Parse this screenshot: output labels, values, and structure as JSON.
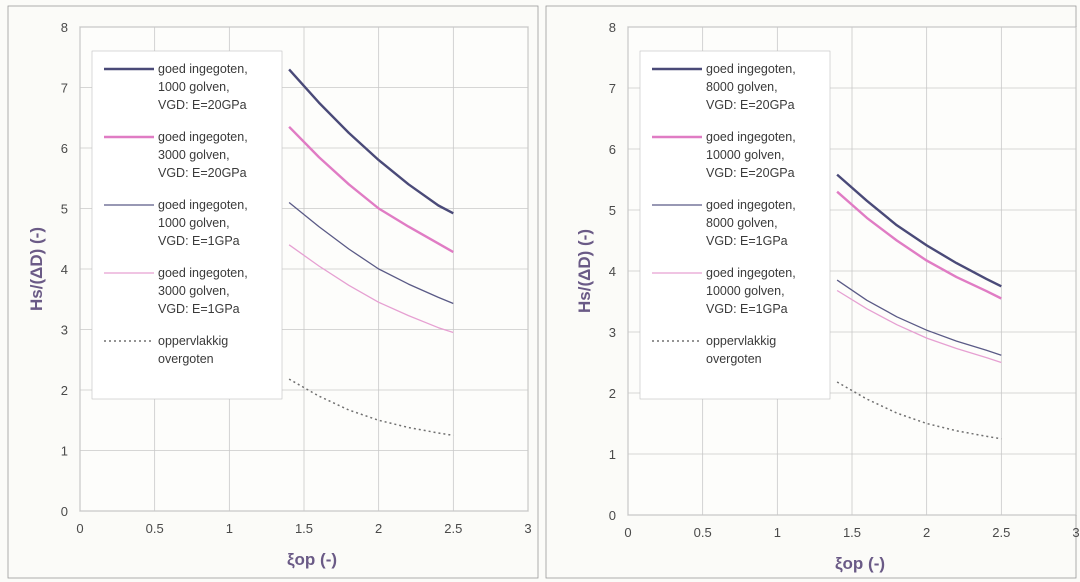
{
  "chart_data": [
    {
      "type": "line",
      "xlabel": "ξop (-)",
      "ylabel": "Hs/(ΔD) (-)",
      "xlim": [
        0,
        3
      ],
      "ylim": [
        0,
        8
      ],
      "xticks": [
        "0",
        "0.5",
        "1",
        "1.5",
        "2",
        "2.5",
        "3"
      ],
      "yticks": [
        "0",
        "1",
        "2",
        "3",
        "4",
        "5",
        "6",
        "7",
        "8"
      ],
      "grid": true,
      "legend": "top-left",
      "series": [
        {
          "name": [
            "goed ingegoten,",
            "1000 golven,",
            "VGD: E=20GPa"
          ],
          "color": "#4a4a78",
          "width": 2.4,
          "dash": "",
          "x": [
            1.4,
            1.6,
            1.8,
            2.0,
            2.2,
            2.4,
            2.5
          ],
          "y": [
            7.3,
            6.75,
            6.25,
            5.8,
            5.4,
            5.05,
            4.92
          ]
        },
        {
          "name": [
            "goed ingegoten,",
            "3000 golven,",
            "VGD: E=20GPa"
          ],
          "color": "#e07cc4",
          "width": 2.4,
          "dash": "",
          "x": [
            1.4,
            1.6,
            1.8,
            2.0,
            2.2,
            2.4,
            2.5
          ],
          "y": [
            6.35,
            5.85,
            5.4,
            5.0,
            4.7,
            4.42,
            4.28
          ]
        },
        {
          "name": [
            "goed ingegoten,",
            "1000 golven,",
            "VGD: E=1GPa"
          ],
          "color": "#5a5a86",
          "width": 1.3,
          "dash": "",
          "x": [
            1.4,
            1.6,
            1.8,
            2.0,
            2.2,
            2.4,
            2.5
          ],
          "y": [
            5.1,
            4.7,
            4.33,
            4.0,
            3.75,
            3.53,
            3.43
          ]
        },
        {
          "name": [
            "goed ingegoten,",
            "3000 golven,",
            "VGD: E=1GPa"
          ],
          "color": "#e6a0d2",
          "width": 1.3,
          "dash": "",
          "x": [
            1.4,
            1.6,
            1.8,
            2.0,
            2.2,
            2.4,
            2.5
          ],
          "y": [
            4.4,
            4.05,
            3.73,
            3.45,
            3.23,
            3.03,
            2.95
          ]
        },
        {
          "name": [
            "oppervlakkig",
            "overgoten"
          ],
          "color": "#707070",
          "width": 1.5,
          "dash": "2,3",
          "x": [
            1.4,
            1.6,
            1.8,
            2.0,
            2.2,
            2.4,
            2.5
          ],
          "y": [
            2.18,
            1.9,
            1.67,
            1.5,
            1.38,
            1.29,
            1.25
          ]
        }
      ]
    },
    {
      "type": "line",
      "xlabel": "ξop (-)",
      "ylabel": "Hs/(ΔD) (-)",
      "xlim": [
        0,
        3
      ],
      "ylim": [
        0,
        8
      ],
      "xticks": [
        "0",
        "0.5",
        "1",
        "1.5",
        "2",
        "2.5",
        "3"
      ],
      "yticks": [
        "0",
        "1",
        "2",
        "3",
        "4",
        "5",
        "6",
        "7",
        "8"
      ],
      "grid": true,
      "legend": "top-left",
      "series": [
        {
          "name": [
            "goed ingegoten,",
            "8000 golven,",
            "VGD: E=20GPa"
          ],
          "color": "#4a4a78",
          "width": 2.4,
          "dash": "",
          "x": [
            1.4,
            1.6,
            1.8,
            2.0,
            2.2,
            2.4,
            2.5
          ],
          "y": [
            5.58,
            5.15,
            4.75,
            4.42,
            4.13,
            3.87,
            3.75
          ]
        },
        {
          "name": [
            "goed ingegoten,",
            "10000 golven,",
            "VGD: E=20GPa"
          ],
          "color": "#e07cc4",
          "width": 2.4,
          "dash": "",
          "x": [
            1.4,
            1.6,
            1.8,
            2.0,
            2.2,
            2.4,
            2.5
          ],
          "y": [
            5.3,
            4.87,
            4.5,
            4.17,
            3.9,
            3.67,
            3.55
          ]
        },
        {
          "name": [
            "goed ingegoten,",
            "8000 golven,",
            "VGD: E=1GPa"
          ],
          "color": "#5a5a86",
          "width": 1.3,
          "dash": "",
          "x": [
            1.4,
            1.6,
            1.8,
            2.0,
            2.2,
            2.4,
            2.5
          ],
          "y": [
            3.85,
            3.52,
            3.25,
            3.03,
            2.85,
            2.7,
            2.62
          ]
        },
        {
          "name": [
            "goed ingegoten,",
            "10000 golven,",
            "VGD: E=1GPa"
          ],
          "color": "#e6a0d2",
          "width": 1.3,
          "dash": "",
          "x": [
            1.4,
            1.6,
            1.8,
            2.0,
            2.2,
            2.4,
            2.5
          ],
          "y": [
            3.68,
            3.38,
            3.12,
            2.9,
            2.73,
            2.58,
            2.5
          ]
        },
        {
          "name": [
            "oppervlakkig",
            "overgoten"
          ],
          "color": "#707070",
          "width": 1.5,
          "dash": "2,3",
          "x": [
            1.4,
            1.6,
            1.8,
            2.0,
            2.2,
            2.4,
            2.5
          ],
          "y": [
            2.18,
            1.9,
            1.67,
            1.5,
            1.38,
            1.29,
            1.25
          ]
        }
      ]
    }
  ]
}
